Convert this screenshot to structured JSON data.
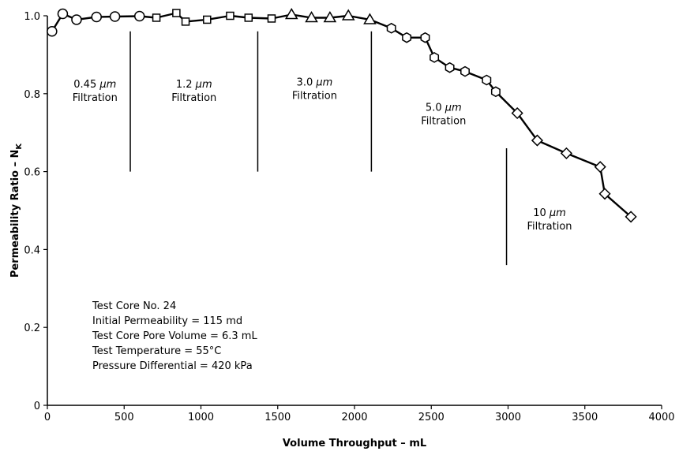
{
  "chart_data": {
    "type": "line",
    "title": "",
    "xlabel": "Volume Throughput – mL",
    "ylabel_main": "Permeability Ratio – N",
    "ylabel_sub": "K",
    "xlim": [
      0,
      4000
    ],
    "ylim": [
      0,
      1.0
    ],
    "xticks": [
      0,
      500,
      1000,
      1500,
      2000,
      2500,
      3000,
      3500,
      4000
    ],
    "yticks": [
      0,
      0.2,
      0.4,
      0.6,
      0.8,
      1.0
    ],
    "ytick_labels": [
      "0",
      "0.2",
      "0.4",
      "0.6",
      "0.8",
      "1.0"
    ],
    "grid": false,
    "line_color": "#000000",
    "series": [
      {
        "marker": "circle",
        "points": [
          [
            30,
            0.96
          ],
          [
            100,
            1.005
          ],
          [
            190,
            0.99
          ],
          [
            320,
            0.997
          ],
          [
            440,
            0.998
          ],
          [
            600,
            0.999
          ]
        ]
      },
      {
        "marker": "square",
        "points": [
          [
            600,
            0.999
          ],
          [
            710,
            0.995
          ],
          [
            840,
            1.007
          ],
          [
            900,
            0.985
          ],
          [
            1040,
            0.99
          ],
          [
            1190,
            1.0
          ],
          [
            1310,
            0.995
          ],
          [
            1460,
            0.993
          ]
        ]
      },
      {
        "marker": "triangle",
        "points": [
          [
            1460,
            0.993
          ],
          [
            1590,
            1.003
          ],
          [
            1720,
            0.995
          ],
          [
            1840,
            0.995
          ],
          [
            1960,
            1.0
          ],
          [
            2100,
            0.99
          ]
        ]
      },
      {
        "marker": "hexagon",
        "points": [
          [
            2100,
            0.99
          ],
          [
            2240,
            0.968
          ],
          [
            2340,
            0.944
          ],
          [
            2460,
            0.944
          ],
          [
            2520,
            0.893
          ],
          [
            2620,
            0.867
          ],
          [
            2720,
            0.857
          ],
          [
            2860,
            0.835
          ],
          [
            2920,
            0.805
          ]
        ]
      },
      {
        "marker": "diamond",
        "points": [
          [
            2920,
            0.805
          ],
          [
            3060,
            0.75
          ],
          [
            3190,
            0.68
          ],
          [
            3380,
            0.647
          ],
          [
            3600,
            0.612
          ],
          [
            3630,
            0.543
          ],
          [
            3800,
            0.484
          ]
        ]
      }
    ],
    "separators": [
      {
        "x": 540,
        "y1": 0.6,
        "y2": 0.96
      },
      {
        "x": 1370,
        "y1": 0.6,
        "y2": 0.96
      },
      {
        "x": 2110,
        "y1": 0.6,
        "y2": 0.96
      },
      {
        "x": 2990,
        "y1": 0.36,
        "y2": 0.66
      }
    ],
    "region_labels": [
      {
        "value": "0.45",
        "unit": "μm",
        "word": "Filtration",
        "x": 310,
        "y": 0.8
      },
      {
        "value": "1.2",
        "unit": "μm",
        "word": "Filtration",
        "x": 955,
        "y": 0.8
      },
      {
        "value": "3.0",
        "unit": "μm",
        "word": "Filtration",
        "x": 1740,
        "y": 0.805
      },
      {
        "value": "5.0",
        "unit": "μm",
        "word": "Filtration",
        "x": 2580,
        "y": 0.74
      },
      {
        "value": "10",
        "unit": "μm",
        "word": "Filtration",
        "x": 3270,
        "y": 0.47
      }
    ],
    "info_lines": [
      "Test Core No. 24",
      "Initial Permeability = 115 md",
      "Test Core Pore Volume = 6.3 mL",
      "Test Temperature = 55°C",
      "Pressure Differential = 420 kPa"
    ]
  }
}
